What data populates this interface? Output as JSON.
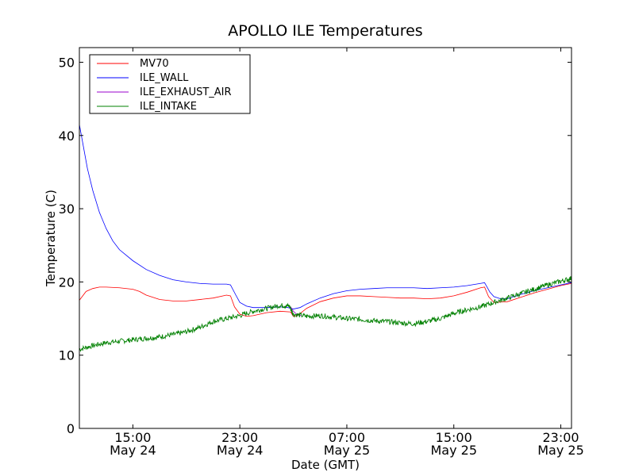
{
  "chart_data": {
    "type": "line",
    "title": "APOLLO ILE Temperatures",
    "xlabel": "Date (GMT)",
    "ylabel": "Temperature (C)",
    "ylim": [
      0,
      52
    ],
    "xlim_hours": [
      11.0,
      47.8
    ],
    "x_unit": "hours since May 24 00:00 GMT",
    "x_ticks": [
      {
        "value": 15,
        "time": "15:00",
        "date": "May 24"
      },
      {
        "value": 23,
        "time": "23:00",
        "date": "May 24"
      },
      {
        "value": 31,
        "time": "07:00",
        "date": "May 25"
      },
      {
        "value": 39,
        "time": "15:00",
        "date": "May 25"
      },
      {
        "value": 47,
        "time": "23:00",
        "date": "May 25"
      }
    ],
    "y_ticks": [
      0,
      10,
      20,
      30,
      40,
      50
    ],
    "legend_position": "top-left",
    "series": [
      {
        "name": "MV70",
        "color": "#ff0000",
        "points": [
          [
            11.0,
            17.5
          ],
          [
            11.5,
            18.7
          ],
          [
            12.0,
            19.1
          ],
          [
            12.5,
            19.3
          ],
          [
            13.0,
            19.3
          ],
          [
            14.0,
            19.2
          ],
          [
            15.0,
            19.0
          ],
          [
            15.5,
            18.7
          ],
          [
            16.0,
            18.2
          ],
          [
            17.0,
            17.6
          ],
          [
            18.0,
            17.4
          ],
          [
            19.0,
            17.4
          ],
          [
            20.0,
            17.6
          ],
          [
            21.0,
            17.8
          ],
          [
            22.0,
            18.2
          ],
          [
            22.3,
            18.1
          ],
          [
            22.6,
            16.6
          ],
          [
            23.0,
            15.6
          ],
          [
            23.5,
            15.3
          ],
          [
            24.0,
            15.4
          ],
          [
            25.0,
            15.8
          ],
          [
            26.0,
            16.0
          ],
          [
            26.8,
            15.9
          ],
          [
            27.0,
            15.3
          ],
          [
            27.3,
            15.4
          ],
          [
            28.0,
            16.4
          ],
          [
            29.0,
            17.3
          ],
          [
            30.0,
            17.8
          ],
          [
            31.0,
            18.1
          ],
          [
            32.0,
            18.1
          ],
          [
            33.0,
            18.0
          ],
          [
            34.0,
            17.9
          ],
          [
            35.0,
            17.8
          ],
          [
            36.0,
            17.8
          ],
          [
            37.0,
            17.7
          ],
          [
            38.0,
            17.8
          ],
          [
            39.0,
            18.1
          ],
          [
            40.0,
            18.6
          ],
          [
            41.0,
            19.2
          ],
          [
            41.3,
            19.3
          ],
          [
            41.6,
            18.0
          ],
          [
            42.0,
            17.2
          ],
          [
            43.0,
            17.3
          ],
          [
            44.0,
            17.9
          ],
          [
            45.0,
            18.5
          ],
          [
            46.0,
            19.0
          ],
          [
            47.0,
            19.5
          ],
          [
            47.8,
            19.8
          ]
        ]
      },
      {
        "name": "ILE_WALL",
        "color": "#0000ff",
        "points": [
          [
            11.0,
            41.5
          ],
          [
            11.3,
            38.5
          ],
          [
            11.6,
            35.5
          ],
          [
            12.0,
            32.5
          ],
          [
            12.5,
            29.5
          ],
          [
            13.0,
            27.3
          ],
          [
            13.5,
            25.6
          ],
          [
            14.0,
            24.4
          ],
          [
            15.0,
            22.9
          ],
          [
            16.0,
            21.7
          ],
          [
            17.0,
            20.9
          ],
          [
            18.0,
            20.3
          ],
          [
            19.0,
            20.0
          ],
          [
            20.0,
            19.8
          ],
          [
            21.0,
            19.7
          ],
          [
            22.0,
            19.7
          ],
          [
            22.3,
            19.6
          ],
          [
            22.7,
            18.2
          ],
          [
            23.0,
            17.2
          ],
          [
            23.5,
            16.7
          ],
          [
            24.0,
            16.5
          ],
          [
            25.0,
            16.5
          ],
          [
            26.0,
            16.6
          ],
          [
            26.6,
            16.5
          ],
          [
            27.0,
            16.3
          ],
          [
            27.5,
            16.5
          ],
          [
            28.0,
            17.0
          ],
          [
            29.0,
            17.8
          ],
          [
            30.0,
            18.4
          ],
          [
            31.0,
            18.8
          ],
          [
            32.0,
            19.0
          ],
          [
            33.0,
            19.1
          ],
          [
            34.0,
            19.2
          ],
          [
            35.0,
            19.2
          ],
          [
            36.0,
            19.2
          ],
          [
            37.0,
            19.1
          ],
          [
            38.0,
            19.2
          ],
          [
            39.0,
            19.3
          ],
          [
            40.0,
            19.5
          ],
          [
            41.0,
            19.8
          ],
          [
            41.3,
            19.9
          ],
          [
            41.7,
            18.6
          ],
          [
            42.0,
            18.0
          ],
          [
            42.5,
            17.7
          ],
          [
            43.0,
            17.7
          ],
          [
            44.0,
            18.3
          ],
          [
            45.0,
            18.8
          ],
          [
            46.0,
            19.2
          ],
          [
            47.0,
            19.6
          ],
          [
            47.8,
            19.9
          ]
        ]
      },
      {
        "name": "ILE_EXHAUST_AIR",
        "color": "#9900cc",
        "points": [
          [
            26.8,
            16.6
          ],
          [
            27.0,
            16.0
          ],
          [
            27.3,
            15.5
          ],
          [
            27.6,
            15.4
          ]
        ]
      },
      {
        "name": "ILE_INTAKE",
        "color": "#008000",
        "noisy": true,
        "points": [
          [
            11.0,
            10.8
          ],
          [
            12.0,
            11.3
          ],
          [
            13.0,
            11.7
          ],
          [
            14.0,
            11.9
          ],
          [
            15.0,
            12.1
          ],
          [
            16.0,
            12.3
          ],
          [
            17.0,
            12.5
          ],
          [
            18.0,
            12.8
          ],
          [
            19.0,
            13.2
          ],
          [
            20.0,
            13.8
          ],
          [
            21.0,
            14.6
          ],
          [
            22.0,
            15.0
          ],
          [
            23.0,
            15.4
          ],
          [
            24.0,
            16.0
          ],
          [
            25.0,
            16.4
          ],
          [
            26.0,
            16.8
          ],
          [
            26.7,
            16.7
          ],
          [
            27.0,
            15.6
          ],
          [
            28.0,
            15.3
          ],
          [
            29.0,
            15.4
          ],
          [
            30.0,
            15.2
          ],
          [
            31.0,
            15.0
          ],
          [
            32.0,
            14.9
          ],
          [
            33.0,
            14.7
          ],
          [
            34.0,
            14.6
          ],
          [
            35.0,
            14.4
          ],
          [
            36.0,
            14.3
          ],
          [
            37.0,
            14.6
          ],
          [
            38.0,
            15.0
          ],
          [
            39.0,
            15.7
          ],
          [
            40.0,
            16.2
          ],
          [
            41.0,
            16.6
          ],
          [
            42.0,
            17.2
          ],
          [
            43.0,
            17.8
          ],
          [
            44.0,
            18.4
          ],
          [
            45.0,
            19.0
          ],
          [
            46.0,
            19.6
          ],
          [
            47.0,
            20.1
          ],
          [
            47.8,
            20.5
          ]
        ]
      }
    ]
  }
}
